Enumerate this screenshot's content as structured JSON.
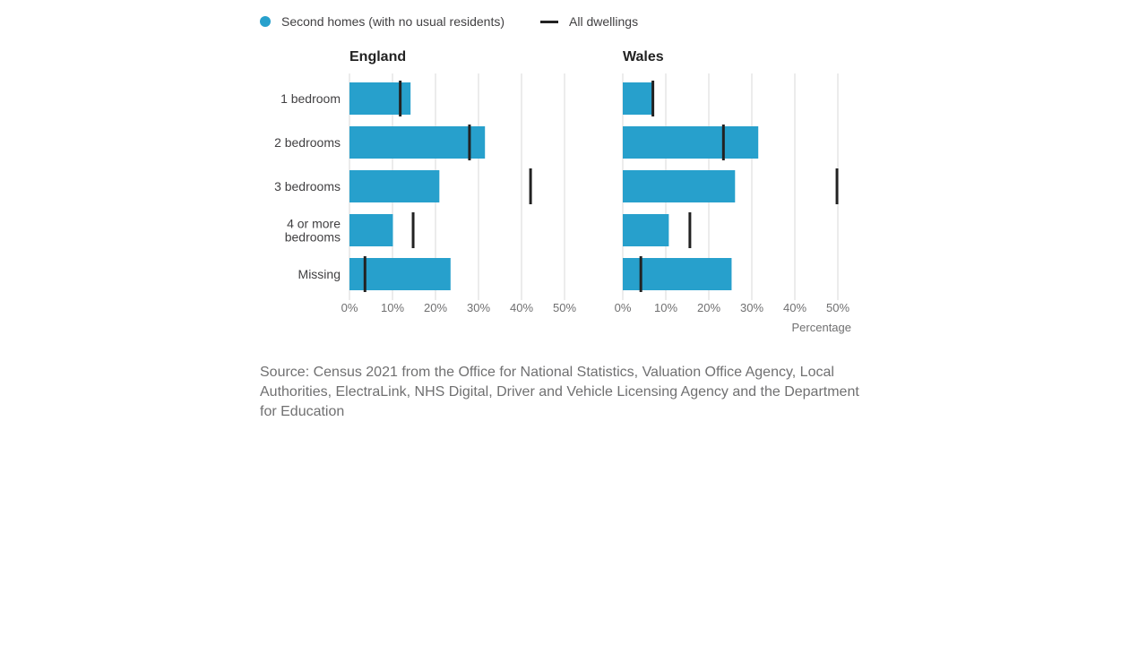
{
  "legend": {
    "second_homes": "Second homes (with no usual residents)",
    "all_dwellings": "All dwellings"
  },
  "colors": {
    "bar": "#27a0cc",
    "marker": "#222222",
    "grid": "#d9d9d9",
    "axis_text": "#707071",
    "label_text": "#414042"
  },
  "chart_data": [
    {
      "type": "bar",
      "orientation": "horizontal",
      "title": "England",
      "categories": [
        "1 bedroom",
        "2 bedrooms",
        "3 bedrooms",
        "4 or more bedrooms",
        "Missing"
      ],
      "series": [
        {
          "name": "Second homes (with no usual residents)",
          "values": [
            14.2,
            31.5,
            20.9,
            10.1,
            23.5
          ]
        },
        {
          "name": "All dwellings",
          "values": [
            11.8,
            27.9,
            42.1,
            14.8,
            3.6
          ]
        }
      ],
      "xlim": [
        0,
        50
      ],
      "xticks": [
        "0%",
        "10%",
        "20%",
        "30%",
        "40%",
        "50%"
      ],
      "xlabel": "",
      "grid": true
    },
    {
      "type": "bar",
      "orientation": "horizontal",
      "title": "Wales",
      "categories": [
        "1 bedroom",
        "2 bedrooms",
        "3 bedrooms",
        "4 or more bedrooms",
        "Missing"
      ],
      "series": [
        {
          "name": "Second homes (with no usual residents)",
          "values": [
            7.2,
            31.5,
            26.1,
            10.7,
            25.3
          ]
        },
        {
          "name": "All dwellings",
          "values": [
            7.0,
            23.4,
            49.8,
            15.6,
            4.2
          ]
        }
      ],
      "xlim": [
        0,
        50
      ],
      "xticks": [
        "0%",
        "10%",
        "20%",
        "30%",
        "40%",
        "50%"
      ],
      "xlabel": "Percentage",
      "grid": true
    }
  ],
  "category_display": [
    [
      "1 bedroom"
    ],
    [
      "2 bedrooms"
    ],
    [
      "3 bedrooms"
    ],
    [
      "4 or more",
      "bedrooms"
    ],
    [
      "Missing"
    ]
  ],
  "source": "Source: Census 2021 from the Office for National Statistics, Valuation Office Agency, Local Authorities, ElectraLink, NHS Digital, Driver and Vehicle Licensing Agency and the Department for Education"
}
